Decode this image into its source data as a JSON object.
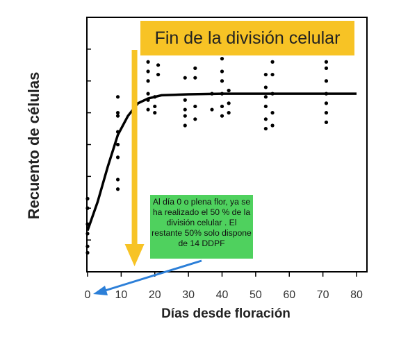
{
  "chart_data": {
    "type": "scatter",
    "title": "Fin de la división celular",
    "xlabel": "Días desde floración",
    "ylabel": "Recuento de células",
    "x_ticks": [
      0,
      10,
      20,
      30,
      40,
      50,
      60,
      70,
      80
    ],
    "xlim": [
      0,
      85
    ],
    "ylim": [
      0,
      8
    ],
    "grid": false,
    "annotation": "Al día 0 o plena flor,  ya se ha realizado el 50 % de la división celular . El restante 50% solo dispone de 14 DDPF",
    "marker_line_x": 15,
    "series": [
      {
        "points": [
          [
            0,
            1.2
          ],
          [
            0,
            1.5
          ],
          [
            0,
            2.0
          ],
          [
            0,
            2.3
          ],
          [
            0,
            0.8
          ],
          [
            0,
            0.6
          ],
          [
            9,
            2.6
          ],
          [
            9,
            2.9
          ],
          [
            9,
            3.6
          ],
          [
            9,
            4.0
          ],
          [
            9,
            4.4
          ],
          [
            9,
            5.0
          ],
          [
            9,
            5.5
          ],
          [
            9,
            4.9
          ],
          [
            18,
            5.1
          ],
          [
            18,
            5.4
          ],
          [
            18,
            5.6
          ],
          [
            18,
            6.0
          ],
          [
            18,
            6.3
          ],
          [
            18,
            6.6
          ],
          [
            20,
            5.0
          ],
          [
            20,
            5.2
          ],
          [
            20,
            5.5
          ],
          [
            21,
            6.2
          ],
          [
            21,
            6.5
          ],
          [
            29,
            4.6
          ],
          [
            29,
            4.9
          ],
          [
            29,
            5.1
          ],
          [
            29,
            5.4
          ],
          [
            29,
            6.1
          ],
          [
            32,
            4.8
          ],
          [
            32,
            5.2
          ],
          [
            32,
            6.1
          ],
          [
            32,
            6.4
          ],
          [
            37,
            5.1
          ],
          [
            37,
            5.6
          ],
          [
            40,
            4.9
          ],
          [
            40,
            5.2
          ],
          [
            40,
            5.6
          ],
          [
            40,
            6.0
          ],
          [
            40,
            6.3
          ],
          [
            40,
            6.7
          ],
          [
            42,
            5.0
          ],
          [
            42,
            5.3
          ],
          [
            42,
            5.7
          ],
          [
            53,
            4.5
          ],
          [
            53,
            4.8
          ],
          [
            53,
            5.2
          ],
          [
            53,
            5.5
          ],
          [
            53,
            5.8
          ],
          [
            53,
            6.2
          ],
          [
            55,
            4.6
          ],
          [
            55,
            5.0
          ],
          [
            55,
            5.6
          ],
          [
            55,
            6.2
          ],
          [
            55,
            6.6
          ],
          [
            71,
            4.7
          ],
          [
            71,
            5.0
          ],
          [
            71,
            5.3
          ],
          [
            71,
            5.6
          ],
          [
            71,
            6.0
          ],
          [
            71,
            6.4
          ],
          [
            71,
            6.6
          ]
        ]
      }
    ],
    "fit_curve": [
      [
        0,
        1.3
      ],
      [
        3,
        2.2
      ],
      [
        6,
        3.3
      ],
      [
        9,
        4.3
      ],
      [
        12,
        4.9
      ],
      [
        15,
        5.3
      ],
      [
        18,
        5.45
      ],
      [
        22,
        5.55
      ],
      [
        30,
        5.58
      ],
      [
        40,
        5.6
      ],
      [
        50,
        5.6
      ],
      [
        60,
        5.6
      ],
      [
        70,
        5.6
      ],
      [
        80,
        5.6
      ]
    ]
  }
}
